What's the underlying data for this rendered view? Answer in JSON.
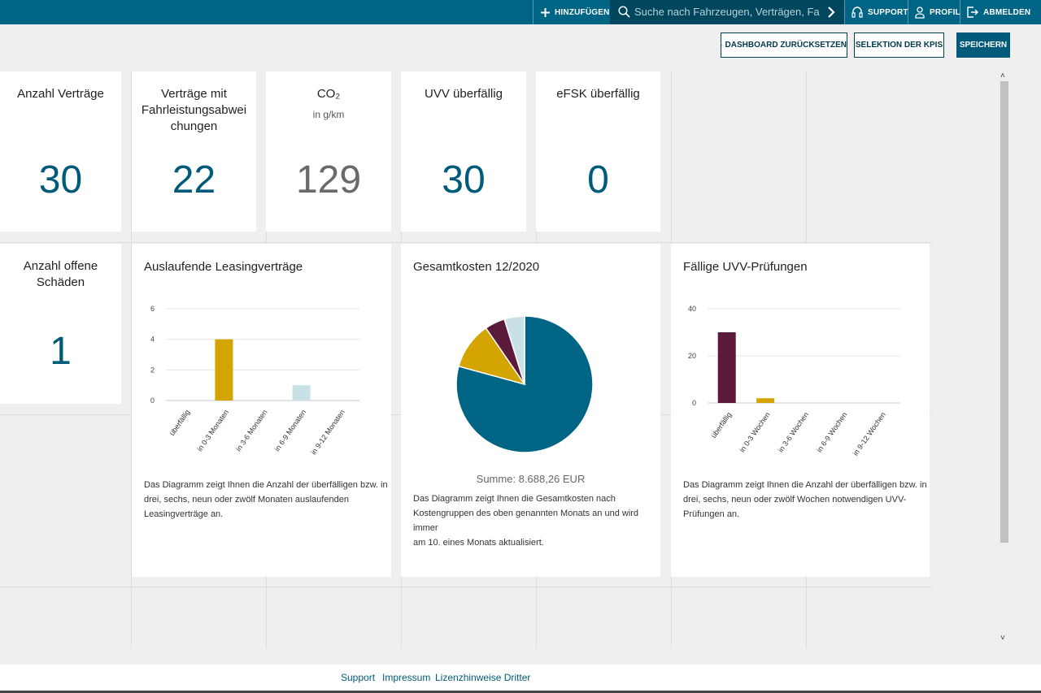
{
  "topbar": {
    "add_label": "HINZUFÜGEN",
    "search_placeholder": "Suche nach Fahrzeugen, Verträgen, Fahr...",
    "support_label": "SUPPORT",
    "profile_label": "PROFIL",
    "logout_label": "ABMELDEN"
  },
  "actions": {
    "reset_label": "DASHBOARD ZURÜCKSETZEN",
    "kpi_select_label": "SELEKTION DER KPIS",
    "save_label": "SPEICHERN"
  },
  "kpis": [
    {
      "title": "Anzahl Verträge",
      "value": "30"
    },
    {
      "title": "Verträge mit Fahrleistungsabwei chungen",
      "title_lines": [
        "Verträge mit",
        "Fahrleistungsabwei",
        "chungen"
      ],
      "value": "22"
    },
    {
      "title": "CO₂",
      "subtitle": "in g/km",
      "value": "129"
    },
    {
      "title": "UVV überfällig",
      "value": "30"
    },
    {
      "title": "eFSK überfällig",
      "value": "0"
    },
    {
      "title_lines": [
        "Anzahl offene",
        "Schäden"
      ],
      "value": "1"
    }
  ],
  "leasing_chart": {
    "title": "Auslaufende Leasingverträge",
    "description_lines": [
      "Das Diagramm zeigt Ihnen die Anzahl der überfälligen bzw. in",
      "drei, sechs, neun oder zwölf Monaten auslaufenden",
      "Leasingverträge an."
    ]
  },
  "cost_chart": {
    "title": "Gesamtkosten 12/2020",
    "sum": "Summe: 8.688,26 EUR",
    "description_lines": [
      "Das Diagramm zeigt Ihnen die Gesamtkosten nach",
      "Kostengruppen des oben genannten Monats an und wird immer",
      "am 10. eines Monats aktualisiert."
    ]
  },
  "uvv_chart": {
    "title": "Fällige UVV-Prüfungen",
    "description_lines": [
      "Das Diagramm zeigt Ihnen die Anzahl der überfälligen bzw. in",
      "drei, sechs, neun oder zwölf Wochen notwendigen UVV-",
      "Prüfungen an."
    ]
  },
  "chart_data": [
    {
      "type": "bar",
      "title": "Auslaufende Leasingverträge",
      "categories": [
        "überfällig",
        "in 0-3 Monaten",
        "in 3-6 Monaten",
        "in 6-9 Monaten",
        "in 9-12 Monaten"
      ],
      "values": [
        0,
        4,
        0,
        1,
        0
      ],
      "colors": [
        "#5c1a3a",
        "#d4a500",
        "#5c1a3a",
        "#c8e0e6",
        "#5c1a3a"
      ],
      "yticks": [
        0,
        2,
        4,
        6
      ],
      "ylim": [
        0,
        6
      ],
      "grid": true
    },
    {
      "type": "pie",
      "title": "Gesamtkosten 12/2020",
      "values": [
        74.5,
        10.5,
        4.5,
        4.5
      ],
      "colors": [
        "#006485",
        "#d4a500",
        "#5c1a3a",
        "#c8e0e6"
      ]
    },
    {
      "type": "bar",
      "title": "Fällige UVV-Prüfungen",
      "categories": [
        "überfällig",
        "in 0-3 Wochen",
        "in 3-6 Wochen",
        "in 6-9 Wochen",
        "in 9-12 Wochen"
      ],
      "values": [
        30,
        2,
        0,
        0,
        0
      ],
      "colors": [
        "#5c1a3a",
        "#d4a500",
        "#5c1a3a",
        "#c8e0e6",
        "#5c1a3a"
      ],
      "yticks": [
        0,
        20,
        40
      ],
      "ylim": [
        0,
        40
      ],
      "grid": true
    }
  ],
  "footer": {
    "support_label": "Support",
    "impressum_label": "Impressum",
    "license_label": "Lizenzhinweise Dritter"
  }
}
